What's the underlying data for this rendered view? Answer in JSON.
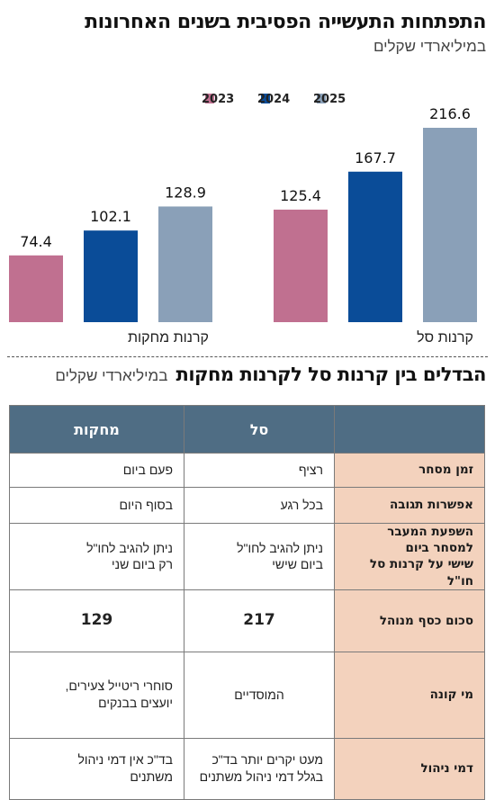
{
  "header": {
    "title": "התפתחות התעשייה הפסיבית בשנים האחרונות",
    "subtitle": "במיליארדי שקלים"
  },
  "chart_data": {
    "type": "bar",
    "title": "התפתחות התעשייה הפסיבית בשנים האחרונות",
    "subtitle": "במיליארדי שקלים",
    "categories": [
      "קרנות סל",
      "קרנות מחקות"
    ],
    "series": [
      {
        "name": "2023",
        "color": "#c07090",
        "values": [
          125.4,
          74.4
        ]
      },
      {
        "name": "2024",
        "color": "#0a4c98",
        "values": [
          167.7,
          102.1
        ]
      },
      {
        "name": "2025",
        "color": "#8aa0b8",
        "values": [
          216.6,
          128.9
        ]
      }
    ],
    "legend_position": "top",
    "grid": false,
    "ylim": [
      0,
      216.6
    ]
  },
  "comparison": {
    "title": "הבדלים בין קרנות סל לקרנות מחקות",
    "unit_note": "במיליארדי שקלים",
    "columns": [
      "",
      "סל",
      "מחקות"
    ],
    "rows": [
      {
        "label": "זמן מסחר",
        "sal": "רציף",
        "mehakot": "פעם ביום"
      },
      {
        "label": "אפשרות תגובה",
        "sal": "בכל רגע",
        "mehakot": "בסוף היום"
      },
      {
        "label": "השפעת המעבר למסחר ביום\nשישי על קרנות סל חו\"ל",
        "sal": "ניתן להגיב לחו\"ל\nביום שישי",
        "mehakot": "ניתן להגיב לחו\"ל\nרק ביום שני"
      },
      {
        "label": "סכום כסף מנוהל",
        "sal": "217",
        "mehakot": "129"
      },
      {
        "label": "מי קונה",
        "sal": "המוסדיים",
        "mehakot": "סוחרי ריטייל צעירים,\nיועצים בבנקים"
      },
      {
        "label": "דמי ניהול",
        "sal": "מעט יקרים יותר בד\"כ\nבגלל דמי ניהול משתנים",
        "mehakot": "בד\"כ אין דמי ניהול\nמשתנים"
      }
    ]
  }
}
